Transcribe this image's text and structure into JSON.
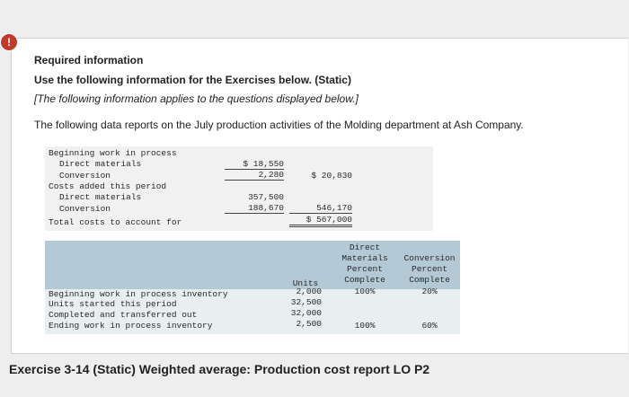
{
  "alert": "!",
  "required_label": "Required information",
  "heading": "Use the following information for the Exercises below. (Static)",
  "note": "[The following information applies to the questions displayed below.]",
  "intro": "The following data reports on the July production activities of the Molding department at Ash Company.",
  "cost_table": {
    "rows": [
      {
        "label": "Beginning work in process",
        "amount": "",
        "total": ""
      },
      {
        "label": "Direct materials",
        "amount": "$ 18,550",
        "total": ""
      },
      {
        "label": "Conversion",
        "amount": "2,280",
        "total": "$ 20,830"
      },
      {
        "label": "Costs added this period",
        "amount": "",
        "total": ""
      },
      {
        "label": "Direct materials",
        "amount": "357,500",
        "total": ""
      },
      {
        "label": "Conversion",
        "amount": "188,670",
        "total": "546,170"
      },
      {
        "label": "Total costs to account for",
        "amount": "",
        "total": "$ 567,000"
      }
    ]
  },
  "units_table": {
    "headers": {
      "units": "Units",
      "dm": [
        "Direct",
        "Materials",
        "Percent",
        "Complete"
      ],
      "conv": [
        "Conversion",
        "Percent",
        "Complete"
      ]
    },
    "rows": [
      {
        "label": "Beginning work in process inventory",
        "units": "2,000",
        "dm": "100%",
        "conv": "20%"
      },
      {
        "label": "Units started this period",
        "units": "32,500",
        "dm": "",
        "conv": ""
      },
      {
        "label": "Completed and transferred out",
        "units": "32,000",
        "dm": "",
        "conv": ""
      },
      {
        "label": "Ending work in process inventory",
        "units": "2,500",
        "dm": "100%",
        "conv": "60%"
      }
    ]
  },
  "exercise_title": "Exercise 3-14 (Static) Weighted average: Production cost report LO P2",
  "colors": {
    "header_band": "#b4c9d6",
    "body_band": "#e9eef1",
    "alert": "#c0392b"
  }
}
